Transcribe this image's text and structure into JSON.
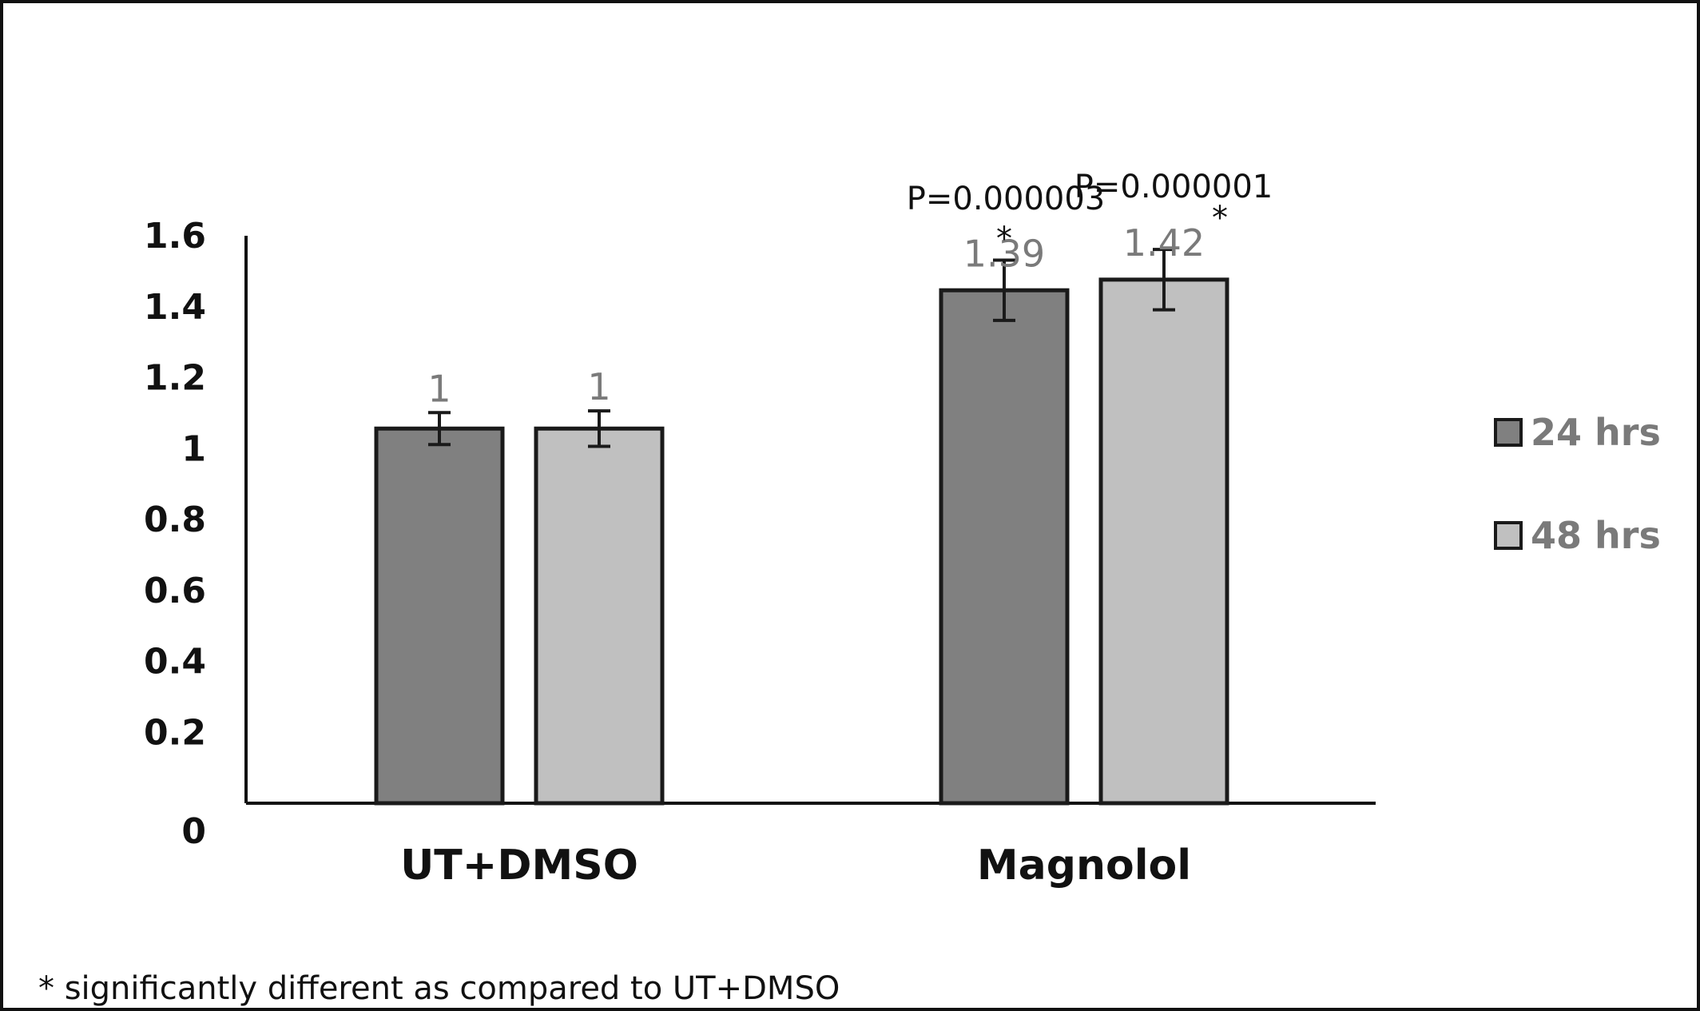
{
  "chart_data": {
    "type": "bar",
    "title": "",
    "xlabel": "",
    "ylabel": "",
    "ylim": [
      0,
      1.6
    ],
    "yticks": [
      "0",
      "0.2",
      "0.4",
      "0.6",
      "0.8",
      "1",
      "1.2",
      "1.4",
      "1.6"
    ],
    "categories": [
      "UT+DMSO",
      "Magnolol"
    ],
    "series": [
      {
        "name": "24 hrs",
        "color": "#808080",
        "values": [
          1.0,
          1.39
        ],
        "labels": [
          "1",
          "1.39"
        ],
        "errors": [
          0.045,
          0.085
        ],
        "significance": [
          "",
          "*"
        ],
        "pvalues": [
          "",
          "P=0.000003"
        ]
      },
      {
        "name": "48 hrs",
        "color": "#c0c0c0",
        "values": [
          1.0,
          1.42
        ],
        "labels": [
          "1",
          "1.42"
        ],
        "errors": [
          0.05,
          0.085
        ],
        "significance": [
          "",
          "*"
        ],
        "pvalues": [
          "",
          "P=0.000001"
        ]
      }
    ],
    "grid": false,
    "legend_position": "right",
    "footnote": "* significantly different as compared to UT+DMSO"
  }
}
